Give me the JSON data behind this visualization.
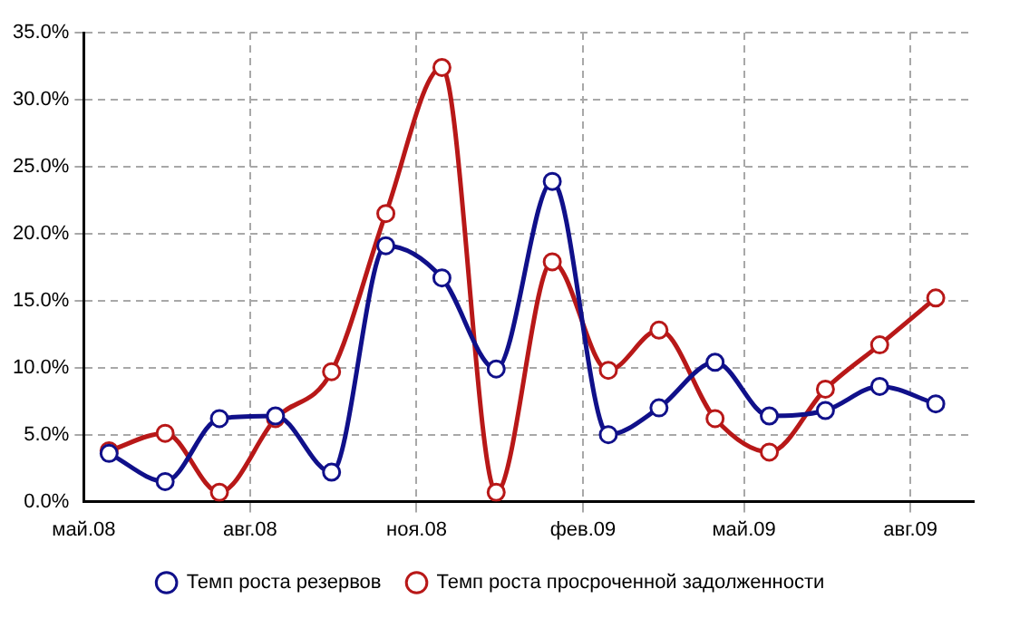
{
  "chart_data": {
    "type": "line",
    "x": [
      "2008-05-15",
      "2008-06-15",
      "2008-07-15",
      "2008-08-15",
      "2008-09-15",
      "2008-10-15",
      "2008-11-15",
      "2008-12-15",
      "2009-01-15",
      "2009-02-15",
      "2009-03-15",
      "2009-04-15",
      "2009-05-15",
      "2009-06-15",
      "2009-07-15",
      "2009-08-15"
    ],
    "series": [
      {
        "name": "Темп роста резервов",
        "color": "#10108a",
        "values": [
          3.6,
          1.5,
          6.2,
          6.4,
          2.2,
          19.1,
          16.7,
          9.9,
          23.9,
          5.0,
          7.0,
          10.4,
          6.4,
          6.8,
          8.6,
          7.3
        ]
      },
      {
        "name": "Темп роста просроченной задолженности",
        "color": "#b81818",
        "values": [
          3.8,
          5.1,
          0.7,
          6.2,
          9.7,
          21.5,
          32.4,
          0.7,
          17.9,
          9.8,
          12.8,
          6.2,
          3.7,
          8.4,
          11.7,
          15.2
        ]
      }
    ],
    "xlim": [
      "2008-05-01",
      "2009-09-05"
    ],
    "xticks": [
      {
        "value": "2008-05-01",
        "label": "май.08"
      },
      {
        "value": "2008-08-01",
        "label": "авг.08"
      },
      {
        "value": "2008-11-01",
        "label": "ноя.08"
      },
      {
        "value": "2009-02-01",
        "label": "фев.09"
      },
      {
        "value": "2009-05-01",
        "label": "май.09"
      },
      {
        "value": "2009-08-01",
        "label": "авг.09"
      }
    ],
    "ylim": [
      0,
      35
    ],
    "yticks": [
      {
        "value": 0,
        "label": "0.0%"
      },
      {
        "value": 5,
        "label": "5.0%"
      },
      {
        "value": 10,
        "label": "10.0%"
      },
      {
        "value": 15,
        "label": "15.0%"
      },
      {
        "value": 20,
        "label": "20.0%"
      },
      {
        "value": 25,
        "label": "25.0%"
      },
      {
        "value": 30,
        "label": "30.0%"
      },
      {
        "value": 35,
        "label": "35.0%"
      }
    ],
    "grid": true,
    "legend": "bottom",
    "marker": "circle",
    "line_style": "solid"
  }
}
